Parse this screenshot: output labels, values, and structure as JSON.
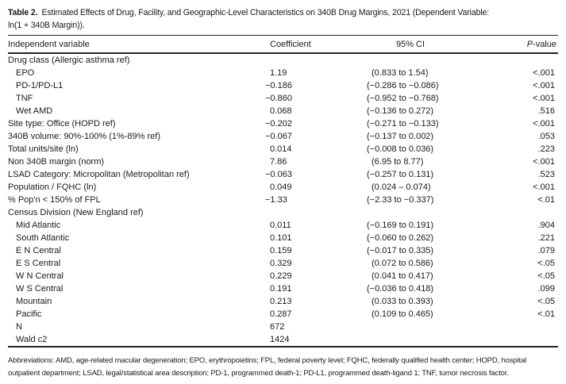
{
  "title": {
    "label": "Table 2.",
    "line1": "Estimated Effects of Drug, Facility, and Geographic-Level Characteristics on 340B Drug Margins, 2021 (Dependent Variable:",
    "line2": "ln(1 + 340B Margin))."
  },
  "header": {
    "col_variable": "Independent variable",
    "col_coefficient": "Coefficient",
    "col_ci": "95% CI",
    "col_p_italic": "P",
    "col_p_rest": "-value"
  },
  "table": {
    "rows": [
      {
        "label": "Drug class (Allergic asthma ref)",
        "coef": "",
        "ci": "",
        "p": ""
      },
      {
        "label": "EPO",
        "coef": "1.19",
        "ci": "(0.833 to 1.54)",
        "p": "<.001"
      },
      {
        "label": "PD-1/PD-L1",
        "coef": "−0.186",
        "ci": "(−0.286 to −0.086)",
        "p": "<.001"
      },
      {
        "label": "TNF",
        "coef": "−0.860",
        "ci": "(−0.952 to −0.768)",
        "p": "<.001"
      },
      {
        "label": "Wet AMD",
        "coef": "0.068",
        "ci": "(−0.136 to 0.272)",
        "p": ".516"
      },
      {
        "label": "Site type: Office (HOPD ref)",
        "coef": "−0.202",
        "ci": "(−0.271 to −0.133)",
        "p": "<.001"
      },
      {
        "label": "340B volume: 90%-100% (1%-89% ref)",
        "coef": "−0.067",
        "ci": "(−0.137 to 0.002)",
        "p": ".053"
      },
      {
        "label": "Total units/site (ln)",
        "coef": "0.014",
        "ci": "(−0.008 to 0.036)",
        "p": ".223"
      },
      {
        "label": "Non 340B margin (norm)",
        "coef": "7.86",
        "ci": "(6.95 to 8.77)",
        "p": "<.001"
      },
      {
        "label": "LSAD Category: Micropolitan (Metropolitan ref)",
        "coef": "−0.063",
        "ci": "(−0.257 to 0.131)",
        "p": ".523"
      },
      {
        "label": "Population / FQHC (ln)",
        "coef": "0.049",
        "ci": "(0.024 – 0.074)",
        "p": "<.001"
      },
      {
        "label": "% Pop'n < 150% of FPL",
        "coef": "−1.33",
        "ci": "(−2.33 to −0.337)",
        "p": "<.01"
      },
      {
        "label": "Census Division (New England ref)",
        "coef": "",
        "ci": "",
        "p": ""
      },
      {
        "label": "Mid Atlantic",
        "coef": "0.011",
        "ci": "(−0.169 to 0.191)",
        "p": ".904"
      },
      {
        "label": "South Atlantic",
        "coef": "0.101",
        "ci": "(−0.060 to 0.262)",
        "p": ".221"
      },
      {
        "label": "E N Central",
        "coef": "0.159",
        "ci": "(−0.017 to 0.335)",
        "p": ".079"
      },
      {
        "label": "E S Central",
        "coef": "0.329",
        "ci": "(0.072 to 0.586)",
        "p": "<.05"
      },
      {
        "label": "W N Central",
        "coef": "0.229",
        "ci": "(0.041 to 0.417)",
        "p": "<.05"
      },
      {
        "label": "W S Central",
        "coef": "0.191",
        "ci": "(−0.036 to 0.418)",
        "p": ".099"
      },
      {
        "label": "Mountain",
        "coef": "0.213",
        "ci": "(0.033 to 0.393)",
        "p": "<.05"
      },
      {
        "label": "Pacific",
        "coef": "0.287",
        "ci": "(0.109 to 0.465)",
        "p": "<.01"
      },
      {
        "label": "N",
        "coef": "672",
        "ci": "",
        "p": ""
      },
      {
        "label": "Wald c2",
        "coef": "1424",
        "ci": "",
        "p": ""
      }
    ]
  },
  "footnote": "Abbreviations: AMD, age-related macular degeneration; EPO, erythropoietins; FPL, federal poverty level; FQHC, federally qualified health center; HOPD, hospital outpatient department; LSAD, legal/statistical area description; PD-1, programmed death-1; PD-L1, programmed death-ligand 1; TNF, tumor necrosis factor."
}
